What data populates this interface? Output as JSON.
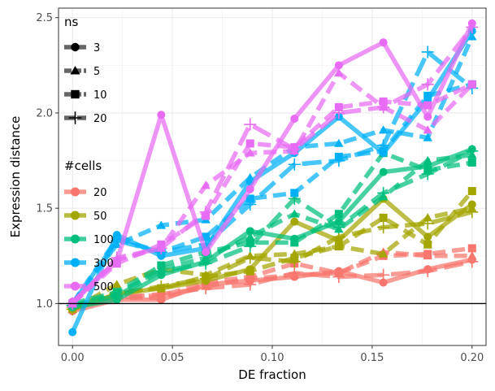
{
  "chart_data": {
    "type": "line",
    "title": "",
    "xlabel": "DE fraction",
    "ylabel": "Expression distance",
    "xlim": [
      -0.007,
      0.207
    ],
    "ylim": [
      0.78,
      2.55
    ],
    "x_ticks": [
      0.0,
      0.05,
      0.1,
      0.15,
      0.2
    ],
    "x_tick_labels": [
      "0.00",
      "0.05",
      "0.10",
      "0.15",
      "0.20"
    ],
    "y_ticks": [
      1.0,
      1.5,
      2.0,
      2.5
    ],
    "y_tick_labels": [
      "1.0",
      "1.5",
      "2.0",
      "2.5"
    ],
    "hline": 1.0,
    "grid": true,
    "x": [
      0.0,
      0.0222,
      0.0444,
      0.0667,
      0.0889,
      0.1111,
      0.1333,
      0.1556,
      0.1778,
      0.2
    ],
    "legend_ns": {
      "title": "ns",
      "entries": [
        {
          "label": "3",
          "shape": "circle",
          "dash": "solid"
        },
        {
          "label": "5",
          "shape": "triangle",
          "dash": "dashed"
        },
        {
          "label": "10",
          "shape": "square",
          "dash": "dashed"
        },
        {
          "label": "20",
          "shape": "plus",
          "dash": "longdash"
        }
      ]
    },
    "legend_cells": {
      "title": "#cells",
      "entries": [
        {
          "label": "20",
          "color": "#F8766D"
        },
        {
          "label": "50",
          "color": "#A3A500"
        },
        {
          "label": "100",
          "color": "#00BF7D"
        },
        {
          "label": "300",
          "color": "#00B0F6"
        },
        {
          "label": "500",
          "color": "#E76BF3"
        }
      ]
    },
    "series": [
      {
        "cells": "20",
        "ns": "3",
        "values": [
          0.96,
          1.02,
          1.02,
          1.1,
          1.12,
          1.14,
          1.17,
          1.11,
          1.18,
          1.23
        ]
      },
      {
        "cells": "20",
        "ns": "5",
        "values": [
          0.97,
          1.03,
          1.03,
          1.09,
          1.13,
          1.15,
          1.16,
          1.27,
          1.25,
          1.25
        ]
      },
      {
        "cells": "20",
        "ns": "10",
        "values": [
          0.97,
          1.04,
          1.04,
          1.11,
          1.14,
          1.21,
          1.16,
          1.25,
          1.26,
          1.29
        ]
      },
      {
        "cells": "20",
        "ns": "20",
        "values": [
          0.98,
          1.03,
          1.05,
          1.08,
          1.1,
          1.16,
          1.14,
          1.15,
          1.17,
          1.22
        ]
      },
      {
        "cells": "50",
        "ns": "3",
        "values": [
          0.97,
          1.05,
          1.08,
          1.12,
          1.18,
          1.43,
          1.33,
          1.55,
          1.35,
          1.52
        ]
      },
      {
        "cells": "50",
        "ns": "5",
        "values": [
          0.97,
          1.1,
          1.18,
          1.15,
          1.25,
          1.26,
          1.3,
          1.26,
          1.45,
          1.5
        ]
      },
      {
        "cells": "50",
        "ns": "10",
        "values": [
          0.98,
          1.06,
          1.08,
          1.14,
          1.17,
          1.24,
          1.3,
          1.45,
          1.31,
          1.59
        ]
      },
      {
        "cells": "50",
        "ns": "20",
        "values": [
          0.97,
          1.05,
          1.09,
          1.13,
          1.24,
          1.22,
          1.35,
          1.4,
          1.42,
          1.48
        ]
      },
      {
        "cells": "100",
        "ns": "3",
        "values": [
          0.98,
          1.02,
          1.15,
          1.22,
          1.38,
          1.34,
          1.43,
          1.69,
          1.72,
          1.81
        ]
      },
      {
        "cells": "100",
        "ns": "5",
        "values": [
          0.99,
          1.05,
          1.18,
          1.24,
          1.35,
          1.47,
          1.39,
          1.56,
          1.75,
          1.78
        ]
      },
      {
        "cells": "100",
        "ns": "10",
        "values": [
          1.0,
          1.06,
          1.2,
          1.27,
          1.32,
          1.32,
          1.47,
          1.79,
          1.7,
          1.74
        ]
      },
      {
        "cells": "100",
        "ns": "20",
        "values": [
          0.99,
          1.04,
          1.17,
          1.21,
          1.3,
          1.55,
          1.4,
          1.58,
          1.68,
          1.8
        ]
      },
      {
        "cells": "300",
        "ns": "3",
        "values": [
          0.85,
          1.36,
          1.25,
          1.29,
          1.64,
          1.79,
          1.98,
          1.79,
          2.07,
          2.43
        ]
      },
      {
        "cells": "300",
        "ns": "5",
        "values": [
          1.0,
          1.31,
          1.41,
          1.44,
          1.66,
          1.82,
          1.84,
          1.91,
          1.87,
          2.4
        ]
      },
      {
        "cells": "300",
        "ns": "10",
        "values": [
          1.0,
          1.34,
          1.27,
          1.35,
          1.55,
          1.58,
          1.77,
          1.8,
          2.09,
          2.15
        ]
      },
      {
        "cells": "300",
        "ns": "20",
        "values": [
          1.0,
          1.33,
          1.27,
          1.31,
          1.52,
          1.73,
          1.75,
          1.83,
          2.32,
          2.13
        ]
      },
      {
        "cells": "500",
        "ns": "3",
        "values": [
          1.01,
          1.22,
          1.99,
          1.27,
          1.6,
          1.97,
          2.25,
          2.37,
          1.98,
          2.47
        ]
      },
      {
        "cells": "500",
        "ns": "5",
        "values": [
          1.0,
          1.23,
          1.29,
          1.62,
          1.79,
          1.8,
          2.21,
          2.03,
          1.91,
          2.15
        ]
      },
      {
        "cells": "500",
        "ns": "10",
        "values": [
          1.0,
          1.21,
          1.31,
          1.46,
          1.84,
          1.82,
          2.03,
          2.06,
          2.04,
          2.15
        ]
      },
      {
        "cells": "500",
        "ns": "20",
        "values": [
          1.0,
          1.24,
          1.29,
          1.48,
          1.94,
          1.81,
          2.0,
          2.03,
          2.15,
          2.45
        ]
      }
    ]
  }
}
